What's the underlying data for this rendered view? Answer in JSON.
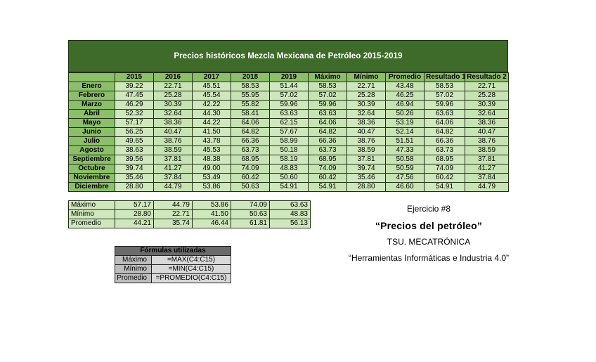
{
  "title": "Precios históricos Mezcla Mexicana de Petróleo 2015-2019",
  "headers": [
    "",
    "2015",
    "2016",
    "2017",
    "2018",
    "2019",
    "Máximo",
    "Mínimo",
    "Promedio",
    "Resultado 1",
    "Resultado 2"
  ],
  "rows": [
    {
      "month": "Enero",
      "values": [
        "39.22",
        "22.71",
        "45.51",
        "58.53",
        "51.44",
        "58.53",
        "22.71",
        "43.48",
        "58.53",
        "22.71"
      ]
    },
    {
      "month": "Febrero",
      "values": [
        "47.45",
        "25.28",
        "45.54",
        "55.95",
        "57.02",
        "57.02",
        "25.28",
        "46.25",
        "57.02",
        "25.28"
      ]
    },
    {
      "month": "Marzo",
      "values": [
        "46.29",
        "30.39",
        "42.22",
        "55.82",
        "59.96",
        "59.96",
        "30.39",
        "46.94",
        "59.96",
        "30.39"
      ]
    },
    {
      "month": "Abril",
      "values": [
        "52.32",
        "32.64",
        "44.30",
        "58.41",
        "63.63",
        "63.63",
        "32.64",
        "50.26",
        "63.63",
        "32.64"
      ]
    },
    {
      "month": "Mayo",
      "values": [
        "57.17",
        "38.36",
        "44.22",
        "64.06",
        "62.15",
        "64.06",
        "38.36",
        "53.19",
        "64.06",
        "38.36"
      ]
    },
    {
      "month": "Junio",
      "values": [
        "56.25",
        "40.47",
        "41.50",
        "64.82",
        "57.67",
        "64.82",
        "40.47",
        "52.14",
        "64.82",
        "40.47"
      ]
    },
    {
      "month": "Julio",
      "values": [
        "49.65",
        "38.76",
        "43.78",
        "66.36",
        "58.99",
        "66.36",
        "38.76",
        "51.51",
        "66.36",
        "38.76"
      ]
    },
    {
      "month": "Agosto",
      "values": [
        "38.63",
        "38.59",
        "45.53",
        "63.73",
        "50.18",
        "63.73",
        "38.59",
        "47.33",
        "63.73",
        "38.59"
      ]
    },
    {
      "month": "Septiembre",
      "values": [
        "39.56",
        "37.81",
        "48.38",
        "68.95",
        "58.19",
        "68.95",
        "37.81",
        "50.58",
        "68.95",
        "37.81"
      ]
    },
    {
      "month": "Octubre",
      "values": [
        "39.74",
        "41.27",
        "49.00",
        "74.09",
        "48.83",
        "74.09",
        "39.74",
        "50.59",
        "74.09",
        "41.27"
      ]
    },
    {
      "month": "Noviembre",
      "values": [
        "35.46",
        "37.84",
        "53.49",
        "60.42",
        "50.60",
        "60.42",
        "35.46",
        "47.56",
        "60.42",
        "37.84"
      ]
    },
    {
      "month": "Diciembre",
      "values": [
        "28.80",
        "44.79",
        "53.86",
        "50.63",
        "54.91",
        "54.91",
        "28.80",
        "46.60",
        "54.91",
        "44.79"
      ]
    }
  ],
  "stats": [
    {
      "label": "Máximo",
      "values": [
        "57.17",
        "44.79",
        "53.86",
        "74.09",
        "63.63"
      ]
    },
    {
      "label": "Mínimo",
      "values": [
        "28.80",
        "22.71",
        "41.50",
        "50.63",
        "48.83"
      ]
    },
    {
      "label": "Promedio",
      "values": [
        "44.21",
        "35.74",
        "46.44",
        "61.81",
        "56.13"
      ]
    }
  ],
  "formulas": {
    "header": "Fórmulas utilizadas",
    "rows": [
      {
        "name": "Máximo",
        "expr": "=MAX(C4:C15)"
      },
      {
        "name": "Mínimo",
        "expr": "=MIN(C4:C15)"
      },
      {
        "name": "Promedio",
        "expr": "=PROMEDIO(C4:C15)"
      }
    ]
  },
  "info": {
    "exercise": "Ejercicio #8",
    "topic": "“Precios del petróleo”",
    "course": "TSU. MECATRÓNICA",
    "subject": "“Herramientas Informáticas e Industria 4.0”"
  },
  "colors": {
    "title_bg": "#3f6b2a",
    "header_bg": "#8cbf69",
    "cell_bg": "#cfe7bc",
    "formula_header_bg": "#6b6b6b",
    "formula_cell_bg": "#d9d9d9"
  }
}
